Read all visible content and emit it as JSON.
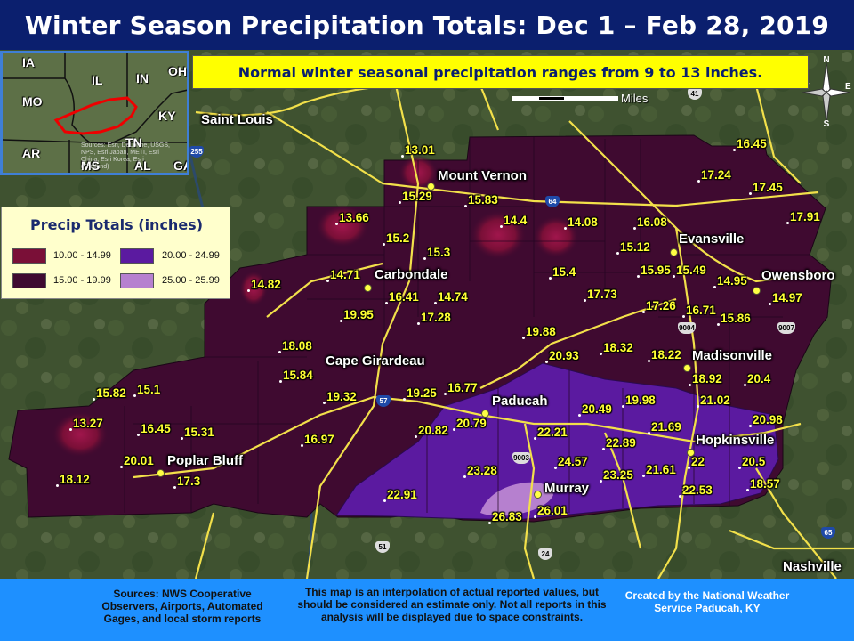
{
  "title": "Winter Season Precipitation Totals: Dec 1 – Feb 28, 2019",
  "note": "Normal winter seasonal precipitation ranges from 9 to 13 inches.",
  "legend": {
    "title": "Precip Totals (inches)",
    "items": [
      {
        "label": "10.00 - 14.99",
        "color": "#7a0f37"
      },
      {
        "label": "15.00 - 19.99",
        "color": "#3f0a30"
      },
      {
        "label": "20.00 - 24.99",
        "color": "#5b1aa0"
      },
      {
        "label": "25.00 - 25.99",
        "color": "#b680cf"
      }
    ]
  },
  "scale": {
    "label": "Miles"
  },
  "compass": {
    "n": "N",
    "s": "S",
    "e": "E",
    "w": "W"
  },
  "inset": {
    "states": [
      "IA",
      "IL",
      "IN",
      "OH",
      "MO",
      "KY",
      "AR",
      "TN",
      "MS",
      "AL",
      "GA"
    ],
    "credit": "Sources: Esri, DeLorme, USGS, NPS, Esri Japan, METI, Esri China, Esri Korea, Esri (Thailand)"
  },
  "cities": [
    "Saint Louis",
    "Mount Vernon",
    "Carbondale",
    "Cape Girardeau",
    "Poplar Bluff",
    "Paducah",
    "Murray",
    "Evansville",
    "Owensboro",
    "Madisonville",
    "Hopkinsville",
    "Nashville"
  ],
  "highway_shields": [
    "255",
    "64",
    "57",
    "9004",
    "9007",
    "9003",
    "24",
    "41",
    "51",
    "65"
  ],
  "observations": [
    "13.01",
    "15.29",
    "15.83",
    "16.45",
    "17.24",
    "17.45",
    "13.66",
    "15.2",
    "14.4",
    "14.08",
    "16.08",
    "17.91",
    "15.3",
    "15.12",
    "14.71",
    "15.4",
    "15.95",
    "15.49",
    "14.95",
    "14.82",
    "16.41",
    "14.74",
    "17.73",
    "17.26",
    "16.71",
    "15.86",
    "14.97",
    "19.95",
    "17.28",
    "19.88",
    "18.08",
    "20.93",
    "18.32",
    "18.22",
    "15.84",
    "19.32",
    "19.25",
    "16.77",
    "18.92",
    "20.4",
    "15.82",
    "15.1",
    "19.98",
    "21.02",
    "13.27",
    "16.45",
    "15.31",
    "20.49",
    "16.97",
    "20.82",
    "20.79",
    "22.21",
    "21.69",
    "20.98",
    "20.01",
    "17.3",
    "22.89",
    "18.12",
    "24.57",
    "21.61",
    "22",
    "20.5",
    "23.28",
    "23.25",
    "22.53",
    "18.57",
    "22.91",
    "26.01",
    "26.83"
  ],
  "footer": {
    "sources": "Sources: NWS Cooperative Observers, Airports, Automated Gages, and local storm reports",
    "disclaimer": "This map is an interpolation of actual reported values, but should be considered an estimate only. Not all reports in this analysis will be displayed due to space constraints.",
    "credit": "Created by the National Weather Service Paducah, KY"
  },
  "colors": {
    "title_bg": "#0b1f6e",
    "footer_bg": "#1e90ff",
    "note_bg": "#ffff00",
    "value_text": "#ffff33",
    "roads": "#f2e04a",
    "inset_border": "#3f7fd6"
  }
}
